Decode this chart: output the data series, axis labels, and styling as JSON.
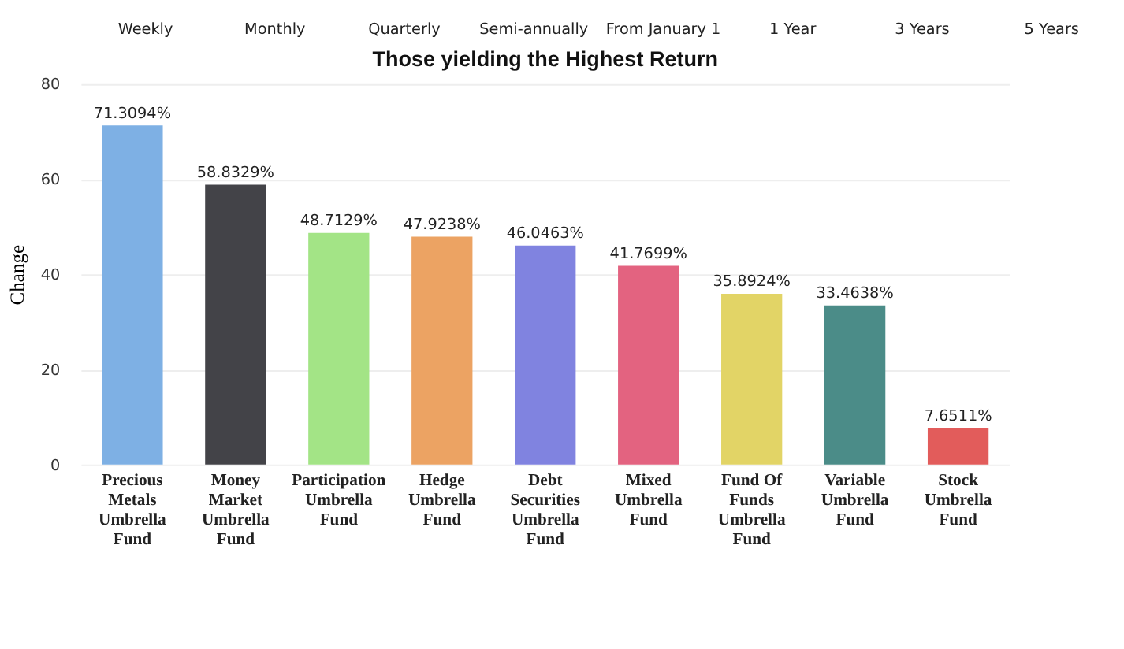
{
  "chart_data": {
    "type": "bar",
    "title": "Those yielding the Highest Return",
    "ylabel": "Change",
    "annotations": [
      "Weekly",
      "Monthly",
      "Quarterly",
      "Semi-annually",
      "From January 1",
      "1 Year",
      "3 Years",
      "5 Years"
    ],
    "categories": [
      "Precious Metals Umbrella Fund",
      "Money Market Umbrella Fund",
      "Participation Umbrella Fund",
      "Hedge Umbrella Fund",
      "Debt Securities Umbrella Fund",
      "Mixed Umbrella Fund",
      "Fund Of Funds Umbrella Fund",
      "Variable Umbrella Fund",
      "Stock Umbrella Fund"
    ],
    "values": [
      71.3094,
      58.8329,
      48.7129,
      47.9238,
      46.0463,
      41.7699,
      35.8924,
      33.4638,
      7.6511
    ],
    "colors": [
      "#7eb0e4",
      "#434348",
      "#a3e486",
      "#eca363",
      "#8083e0",
      "#e36380",
      "#e2d466",
      "#4b8c88",
      "#e25c5b"
    ],
    "value_labels": [
      "71.3094%",
      "58.8329%",
      "48.7129%",
      "47.9238%",
      "46.0463%",
      "41.7699%",
      "35.8924%",
      "33.4638%",
      "7.6511%"
    ],
    "ylim": [
      0,
      80
    ],
    "yticks": [
      0,
      20,
      40,
      60,
      80
    ],
    "grid": "y"
  }
}
